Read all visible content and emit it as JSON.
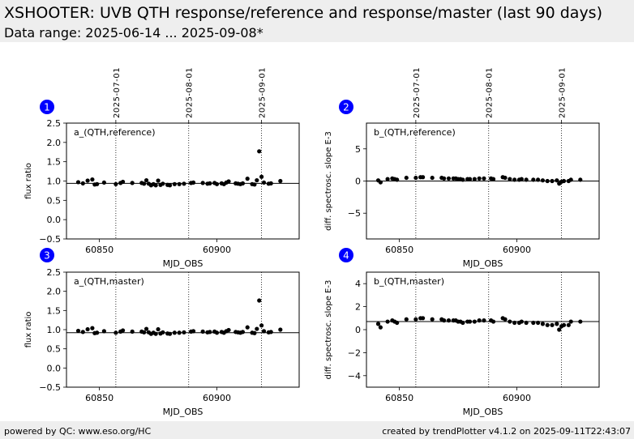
{
  "header": {
    "title": "XSHOOTER: UVB QTH response/reference and response/master (last 90 days)",
    "subtitle": "Data range: 2025-06-14 ... 2025-09-08*"
  },
  "footer": {
    "left": "powered by QC: www.eso.org/HC",
    "right": "created by trendPlotter v4.1.2 on 2025-09-11T22:43:07"
  },
  "colors": {
    "header_bg": "#eeeeee",
    "marker": "#000000",
    "badge": "#0000ff"
  },
  "chart_data": [
    {
      "type": "scatter",
      "badge": "1",
      "label": "a_(QTH,reference)",
      "xlabel": "MJD_OBS",
      "ylabel": "flux ratio",
      "xlim": [
        60836,
        60935
      ],
      "ylim": [
        -0.5,
        2.5
      ],
      "yticks": [
        -0.5,
        0.0,
        0.5,
        1.0,
        1.5,
        2.0,
        2.5
      ],
      "ytick_labels": [
        "−0.5",
        "0.0",
        "0.5",
        "1.0",
        "1.5",
        "2.0",
        "2.5"
      ],
      "xticks": [
        60850,
        60900
      ],
      "reference_line": 0.94,
      "date_markers": [
        {
          "mjd": 60857,
          "label": "2025-07-01"
        },
        {
          "mjd": 60888,
          "label": "2025-08-01"
        },
        {
          "mjd": 60919,
          "label": "2025-09-01"
        }
      ],
      "points": [
        [
          60841,
          0.97
        ],
        [
          60843,
          0.94
        ],
        [
          60845,
          1.01
        ],
        [
          60847,
          1.04
        ],
        [
          60848,
          0.91
        ],
        [
          60849,
          0.92
        ],
        [
          60852,
          0.96
        ],
        [
          60857,
          0.92
        ],
        [
          60859,
          0.95
        ],
        [
          60860,
          0.98
        ],
        [
          60864,
          0.95
        ],
        [
          60868,
          0.95
        ],
        [
          60869,
          0.93
        ],
        [
          60870,
          1.02
        ],
        [
          60871,
          0.93
        ],
        [
          60872,
          0.89
        ],
        [
          60873,
          0.92
        ],
        [
          60874,
          0.89
        ],
        [
          60875,
          1.01
        ],
        [
          60876,
          0.9
        ],
        [
          60877,
          0.93
        ],
        [
          60879,
          0.9
        ],
        [
          60880,
          0.89
        ],
        [
          60882,
          0.92
        ],
        [
          60884,
          0.92
        ],
        [
          60886,
          0.93
        ],
        [
          60889,
          0.95
        ],
        [
          60890,
          0.96
        ],
        [
          60894,
          0.95
        ],
        [
          60896,
          0.93
        ],
        [
          60897,
          0.94
        ],
        [
          60899,
          0.95
        ],
        [
          60900,
          0.92
        ],
        [
          60902,
          0.94
        ],
        [
          60903,
          0.92
        ],
        [
          60904,
          0.96
        ],
        [
          60905,
          0.99
        ],
        [
          60908,
          0.94
        ],
        [
          60909,
          0.93
        ],
        [
          60910,
          0.92
        ],
        [
          60911,
          0.94
        ],
        [
          60913,
          1.06
        ],
        [
          60915,
          0.92
        ],
        [
          60916,
          0.91
        ],
        [
          60917,
          1.02
        ],
        [
          60918,
          1.77
        ],
        [
          60919,
          1.11
        ],
        [
          60920,
          0.96
        ],
        [
          60922,
          0.93
        ],
        [
          60923,
          0.94
        ],
        [
          60927,
          1.0
        ]
      ]
    },
    {
      "type": "scatter",
      "badge": "2",
      "label": "b_(QTH,reference)",
      "xlabel": "MJD_OBS",
      "ylabel": "diff. spectrosc. slope E-3",
      "xlim": [
        60836,
        60935
      ],
      "ylim": [
        -9,
        9
      ],
      "yticks": [
        -5,
        0,
        5
      ],
      "ytick_labels": [
        "−5",
        "0",
        "5"
      ],
      "xticks": [
        60850,
        60900
      ],
      "reference_line": 0.0,
      "date_markers": [
        {
          "mjd": 60857,
          "label": "2025-07-01"
        },
        {
          "mjd": 60888,
          "label": "2025-08-01"
        },
        {
          "mjd": 60919,
          "label": "2025-09-01"
        }
      ],
      "points": [
        [
          60841,
          0.1
        ],
        [
          60842,
          -0.2
        ],
        [
          60845,
          0.3
        ],
        [
          60847,
          0.4
        ],
        [
          60848,
          0.3
        ],
        [
          60849,
          0.2
        ],
        [
          60853,
          0.5
        ],
        [
          60857,
          0.5
        ],
        [
          60859,
          0.6
        ],
        [
          60860,
          0.6
        ],
        [
          60864,
          0.5
        ],
        [
          60868,
          0.5
        ],
        [
          60869,
          0.4
        ],
        [
          60871,
          0.4
        ],
        [
          60873,
          0.4
        ],
        [
          60874,
          0.4
        ],
        [
          60875,
          0.3
        ],
        [
          60876,
          0.3
        ],
        [
          60877,
          0.2
        ],
        [
          60879,
          0.3
        ],
        [
          60880,
          0.3
        ],
        [
          60882,
          0.3
        ],
        [
          60884,
          0.4
        ],
        [
          60886,
          0.4
        ],
        [
          60889,
          0.4
        ],
        [
          60890,
          0.3
        ],
        [
          60894,
          0.6
        ],
        [
          60895,
          0.5
        ],
        [
          60897,
          0.3
        ],
        [
          60899,
          0.2
        ],
        [
          60901,
          0.2
        ],
        [
          60902,
          0.3
        ],
        [
          60904,
          0.2
        ],
        [
          60907,
          0.2
        ],
        [
          60909,
          0.2
        ],
        [
          60911,
          0.1
        ],
        [
          60913,
          0.0
        ],
        [
          60915,
          0.0
        ],
        [
          60917,
          0.1
        ],
        [
          60918,
          -0.4
        ],
        [
          60919,
          -0.1
        ],
        [
          60920,
          0.0
        ],
        [
          60922,
          0.0
        ],
        [
          60923,
          0.2
        ],
        [
          60927,
          0.2
        ]
      ]
    },
    {
      "type": "scatter",
      "badge": "3",
      "label": "a_(QTH,master)",
      "xlabel": "MJD_OBS",
      "ylabel": "flux ratio",
      "xlim": [
        60836,
        60935
      ],
      "ylim": [
        -0.5,
        2.5
      ],
      "yticks": [
        -0.5,
        0.0,
        0.5,
        1.0,
        1.5,
        2.0,
        2.5
      ],
      "ytick_labels": [
        "−0.5",
        "0.0",
        "0.5",
        "1.0",
        "1.5",
        "2.0",
        "2.5"
      ],
      "xticks": [
        60850,
        60900
      ],
      "reference_line": 0.92,
      "date_markers": [
        {
          "mjd": 60857,
          "label": "2025-07-01"
        },
        {
          "mjd": 60888,
          "label": "2025-08-01"
        },
        {
          "mjd": 60919,
          "label": "2025-09-01"
        }
      ],
      "points": [
        [
          60841,
          0.97
        ],
        [
          60843,
          0.94
        ],
        [
          60845,
          1.01
        ],
        [
          60847,
          1.04
        ],
        [
          60848,
          0.91
        ],
        [
          60849,
          0.92
        ],
        [
          60852,
          0.96
        ],
        [
          60857,
          0.92
        ],
        [
          60859,
          0.95
        ],
        [
          60860,
          0.98
        ],
        [
          60864,
          0.95
        ],
        [
          60868,
          0.95
        ],
        [
          60869,
          0.93
        ],
        [
          60870,
          1.02
        ],
        [
          60871,
          0.93
        ],
        [
          60872,
          0.89
        ],
        [
          60873,
          0.92
        ],
        [
          60874,
          0.89
        ],
        [
          60875,
          1.01
        ],
        [
          60876,
          0.9
        ],
        [
          60877,
          0.93
        ],
        [
          60879,
          0.9
        ],
        [
          60880,
          0.89
        ],
        [
          60882,
          0.92
        ],
        [
          60884,
          0.92
        ],
        [
          60886,
          0.93
        ],
        [
          60889,
          0.95
        ],
        [
          60890,
          0.96
        ],
        [
          60894,
          0.95
        ],
        [
          60896,
          0.93
        ],
        [
          60897,
          0.94
        ],
        [
          60899,
          0.95
        ],
        [
          60900,
          0.92
        ],
        [
          60902,
          0.94
        ],
        [
          60903,
          0.92
        ],
        [
          60904,
          0.96
        ],
        [
          60905,
          0.99
        ],
        [
          60908,
          0.94
        ],
        [
          60909,
          0.93
        ],
        [
          60910,
          0.92
        ],
        [
          60911,
          0.94
        ],
        [
          60913,
          1.06
        ],
        [
          60915,
          0.92
        ],
        [
          60916,
          0.91
        ],
        [
          60917,
          1.02
        ],
        [
          60918,
          1.76
        ],
        [
          60919,
          1.11
        ],
        [
          60920,
          0.96
        ],
        [
          60922,
          0.93
        ],
        [
          60923,
          0.94
        ],
        [
          60927,
          1.0
        ]
      ]
    },
    {
      "type": "scatter",
      "badge": "4",
      "label": "b_(QTH,master)",
      "xlabel": "MJD_OBS",
      "ylabel": "diff. spectrosc. slope E-3",
      "xlim": [
        60836,
        60935
      ],
      "ylim": [
        -5,
        5
      ],
      "yticks": [
        -4,
        -2,
        0,
        2,
        4
      ],
      "ytick_labels": [
        "−4",
        "−2",
        "0",
        "2",
        "4"
      ],
      "xticks": [
        60850,
        60900
      ],
      "reference_line": 0.7,
      "date_markers": [
        {
          "mjd": 60857,
          "label": "2025-07-01"
        },
        {
          "mjd": 60888,
          "label": "2025-08-01"
        },
        {
          "mjd": 60919,
          "label": "2025-09-01"
        }
      ],
      "points": [
        [
          60841,
          0.5
        ],
        [
          60842,
          0.2
        ],
        [
          60845,
          0.7
        ],
        [
          60847,
          0.8
        ],
        [
          60848,
          0.7
        ],
        [
          60849,
          0.6
        ],
        [
          60853,
          0.9
        ],
        [
          60857,
          0.9
        ],
        [
          60859,
          1.0
        ],
        [
          60860,
          1.0
        ],
        [
          60864,
          0.9
        ],
        [
          60868,
          0.9
        ],
        [
          60869,
          0.8
        ],
        [
          60871,
          0.8
        ],
        [
          60873,
          0.8
        ],
        [
          60874,
          0.8
        ],
        [
          60875,
          0.7
        ],
        [
          60876,
          0.7
        ],
        [
          60877,
          0.6
        ],
        [
          60879,
          0.7
        ],
        [
          60880,
          0.7
        ],
        [
          60882,
          0.7
        ],
        [
          60884,
          0.8
        ],
        [
          60886,
          0.8
        ],
        [
          60889,
          0.8
        ],
        [
          60890,
          0.7
        ],
        [
          60894,
          1.0
        ],
        [
          60895,
          0.9
        ],
        [
          60897,
          0.7
        ],
        [
          60899,
          0.6
        ],
        [
          60901,
          0.6
        ],
        [
          60902,
          0.7
        ],
        [
          60904,
          0.6
        ],
        [
          60907,
          0.6
        ],
        [
          60909,
          0.6
        ],
        [
          60911,
          0.5
        ],
        [
          60913,
          0.4
        ],
        [
          60915,
          0.4
        ],
        [
          60917,
          0.5
        ],
        [
          60918,
          0.0
        ],
        [
          60919,
          0.3
        ],
        [
          60920,
          0.4
        ],
        [
          60922,
          0.4
        ],
        [
          60923,
          0.7
        ],
        [
          60927,
          0.7
        ]
      ]
    }
  ]
}
